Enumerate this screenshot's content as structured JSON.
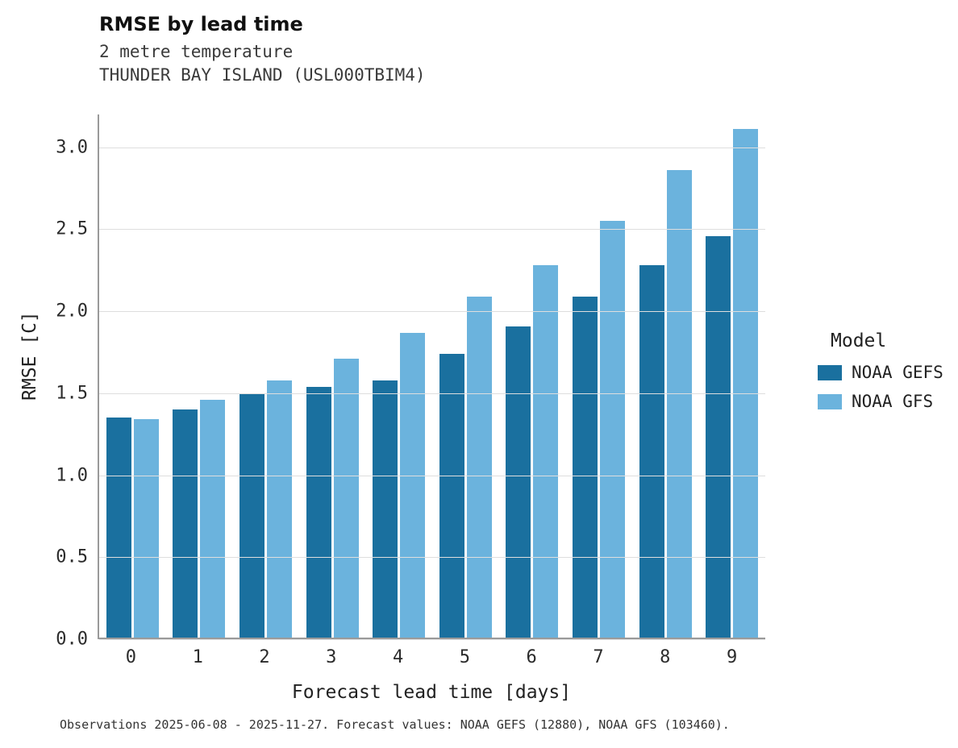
{
  "title": "RMSE by lead time",
  "subtitle1": "2 metre temperature",
  "subtitle2": "THUNDER BAY ISLAND (USL000TBIM4)",
  "footer": "Observations 2025-06-08 - 2025-11-27. Forecast values: NOAA GEFS (12880), NOAA GFS (103460).",
  "legend": {
    "title": "Model"
  },
  "colors": {
    "gefs": "#1a709f",
    "gfs": "#6bb3dd",
    "grid": "#dedede",
    "spine": "#9a9a9a"
  },
  "chart_data": {
    "type": "bar",
    "title": "RMSE by lead time",
    "subtitle": "2 metre temperature — THUNDER BAY ISLAND (USL000TBIM4)",
    "xlabel": "Forecast lead time [days]",
    "ylabel": "RMSE [C]",
    "categories": [
      "0",
      "1",
      "2",
      "3",
      "4",
      "5",
      "6",
      "7",
      "8",
      "9"
    ],
    "series": [
      {
        "name": "NOAA GEFS",
        "color": "#1a709f",
        "values": [
          1.34,
          1.39,
          1.49,
          1.53,
          1.57,
          1.73,
          1.9,
          2.08,
          2.27,
          2.45
        ]
      },
      {
        "name": "NOAA GFS",
        "color": "#6bb3dd",
        "values": [
          1.33,
          1.45,
          1.57,
          1.7,
          1.86,
          2.08,
          2.27,
          2.54,
          2.85,
          3.1
        ]
      }
    ],
    "ylim": [
      0,
      3.2
    ],
    "yticks": [
      0.0,
      0.5,
      1.0,
      1.5,
      2.0,
      2.5,
      3.0
    ],
    "grid": true,
    "legend_position": "right",
    "legend_title": "Model"
  }
}
